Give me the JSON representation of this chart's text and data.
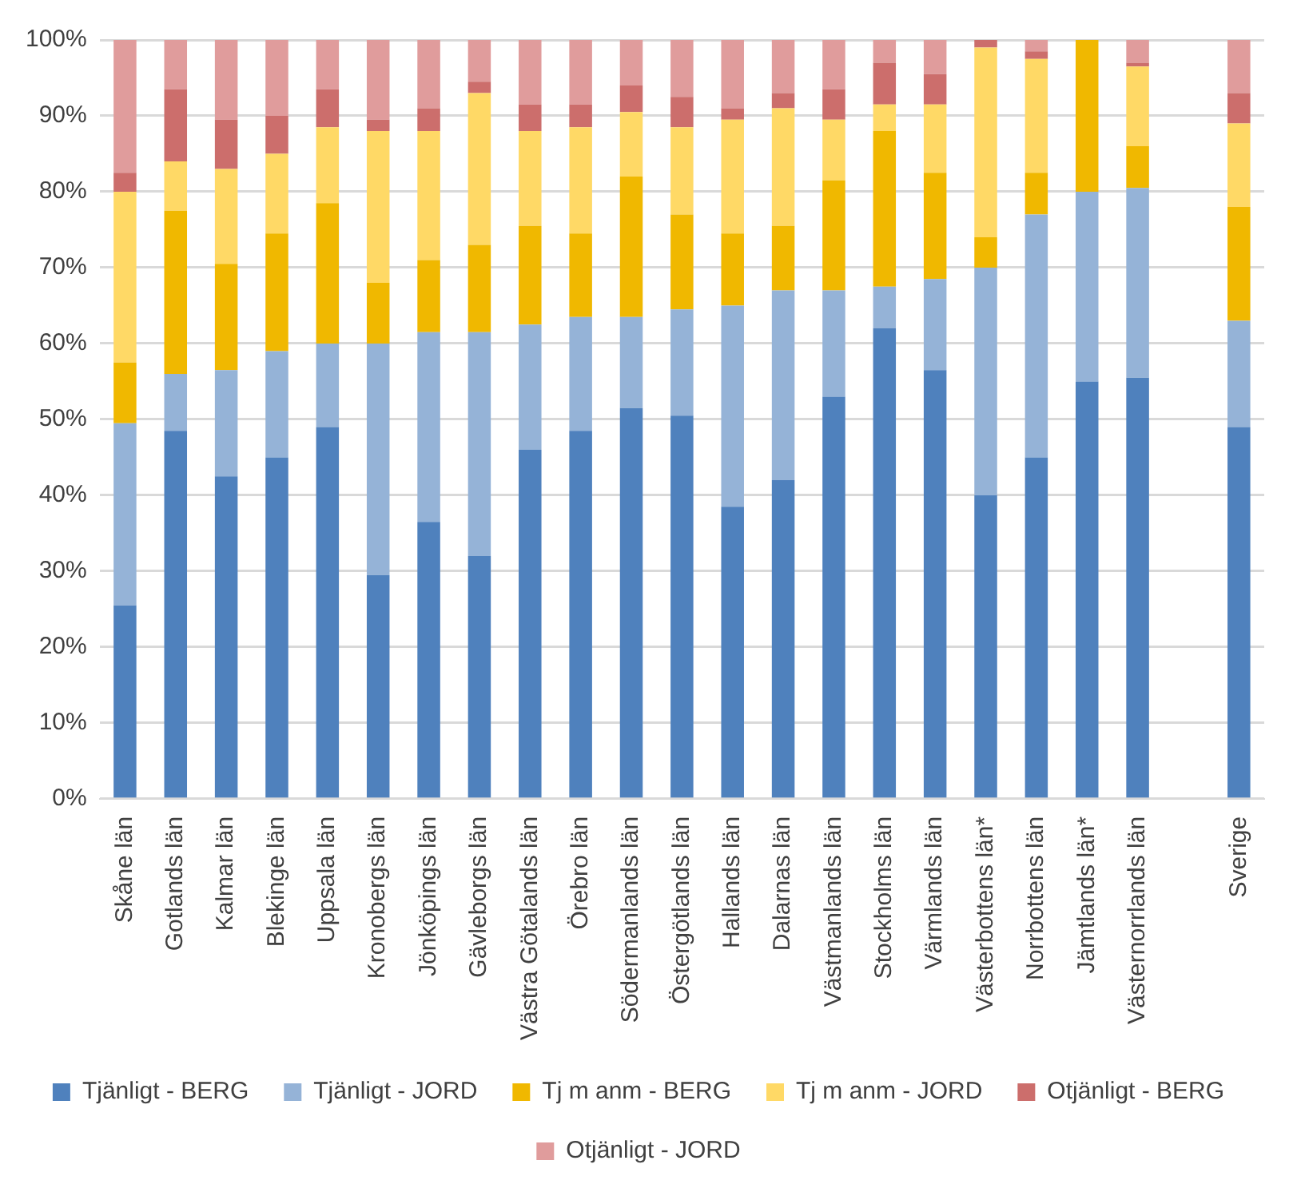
{
  "chart_data": {
    "type": "bar",
    "stacked": true,
    "categories": [
      "Skåne län",
      "Gotlands län",
      "Kalmar län",
      "Blekinge län",
      "Uppsala län",
      "Kronobergs län",
      "Jönköpings län",
      "Gävleborgs län",
      "Västra Götalands län",
      "Örebro län",
      "Södermanlands län",
      "Östergötlands län",
      "Hallands län",
      "Dalarnas län",
      "Västmanlands län",
      "Stockholms län",
      "Värmlands län",
      "Västerbottens län*",
      "Norrbottens län",
      "Jämtlands län*",
      "Västernorrlands län",
      null,
      "Sverige"
    ],
    "series": [
      {
        "name": "Tjänligt - BERG",
        "color": "#4f81bd",
        "values": [
          25.5,
          48.5,
          42.5,
          45,
          49,
          29.5,
          36.5,
          32,
          46,
          48.5,
          51.5,
          50.5,
          38.5,
          42,
          53,
          62,
          56.5,
          40,
          45,
          55,
          55.5,
          null,
          49
        ]
      },
      {
        "name": "Tjänligt - JORD",
        "color": "#95b3d7",
        "values": [
          24,
          7.5,
          14,
          14,
          11,
          30.5,
          25,
          29.5,
          16.5,
          15,
          12,
          14,
          26.5,
          25,
          14,
          5.5,
          12,
          30,
          32,
          25,
          25,
          null,
          14
        ]
      },
      {
        "name": "Tj m anm - BERG",
        "color": "#f0b800",
        "values": [
          8,
          21.5,
          14,
          15.5,
          18.5,
          8,
          9.5,
          11.5,
          13,
          11,
          18.5,
          12.5,
          9.5,
          8.5,
          14.5,
          20.5,
          14,
          4,
          5.5,
          20,
          5.5,
          null,
          15
        ]
      },
      {
        "name": "Tj m anm - JORD",
        "color": "#ffd966",
        "values": [
          22.5,
          6.5,
          12.5,
          10.5,
          10,
          20,
          17,
          20,
          12.5,
          14,
          8.5,
          11.5,
          15,
          15.5,
          8,
          3.5,
          9,
          25,
          15,
          0,
          10.5,
          null,
          11
        ]
      },
      {
        "name": "Otjänligt - BERG",
        "color": "#cc6e6c",
        "values": [
          2.5,
          9.5,
          6.5,
          5,
          5,
          1.5,
          3,
          1.5,
          3.5,
          3,
          3.5,
          4,
          1.5,
          2,
          4,
          5.5,
          4,
          1,
          1,
          0,
          0.5,
          null,
          4
        ]
      },
      {
        "name": "Otjänligt - JORD",
        "color": "#e09c9c",
        "values": [
          17.5,
          6.5,
          10.5,
          10,
          6.5,
          10.5,
          9,
          5.5,
          8.5,
          8.5,
          6,
          7.5,
          9,
          7,
          6.5,
          3,
          4.5,
          0,
          1.5,
          0,
          3,
          null,
          7
        ]
      }
    ],
    "ylim": [
      0,
      100
    ],
    "yticks": [
      {
        "value": 0,
        "label": "0%"
      },
      {
        "value": 10,
        "label": "10%"
      },
      {
        "value": 20,
        "label": "20%"
      },
      {
        "value": 30,
        "label": "30%"
      },
      {
        "value": 40,
        "label": "40%"
      },
      {
        "value": 50,
        "label": "50%"
      },
      {
        "value": 60,
        "label": "60%"
      },
      {
        "value": 70,
        "label": "70%"
      },
      {
        "value": 80,
        "label": "80%"
      },
      {
        "value": 90,
        "label": "90%"
      },
      {
        "value": 100,
        "label": "100%"
      }
    ],
    "grid": "y",
    "legend": "bottom"
  }
}
